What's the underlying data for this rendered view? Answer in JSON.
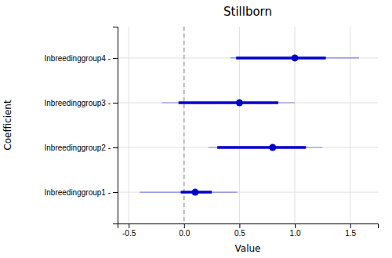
{
  "chart_data": {
    "type": "dot",
    "title": "Stillborn",
    "x_label": "Value",
    "y_label": "Coefficient",
    "categories": [
      "Inbreedinggroup1 -",
      "Inbreedinggroup2 -",
      "Inbreedinggroup3 -",
      "Inbreedinggroup4 -"
    ],
    "values": [
      0.1,
      0.8,
      0.5,
      1.0
    ],
    "ci95_low": [
      -0.03,
      0.3,
      -0.05,
      0.47
    ],
    "ci95_high": [
      0.25,
      1.1,
      0.85,
      1.28
    ],
    "ci99_low": [
      -0.4,
      0.22,
      -0.2,
      0.42
    ],
    "ci99_high": [
      0.48,
      1.25,
      1.0,
      1.58
    ],
    "reference_x": 0,
    "color": "#0000cc",
    "xlim": [
      -0.6,
      1.75
    ],
    "xticks": [
      -0.5,
      {
        "value": 0,
        "label": "0.0"
      },
      0.5,
      {
        "value": 1,
        "label": "1.0"
      },
      1.5
    ],
    "grid": true
  }
}
